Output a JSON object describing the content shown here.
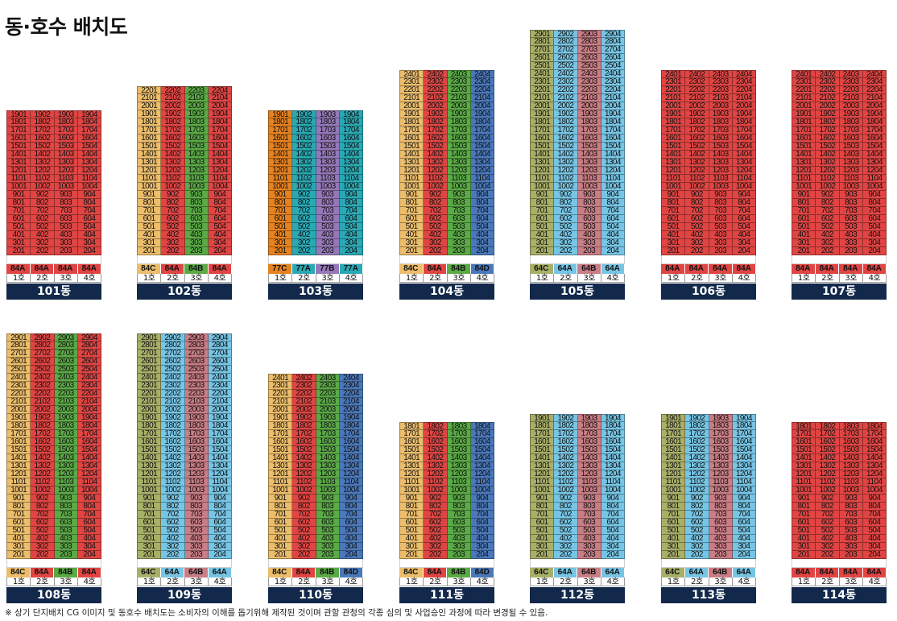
{
  "title": "동·호수 배치도",
  "footnote": "※ 상기 단지배치 CG 이미지 및 동호수 배치도는 소비자의 이해를 돕기위해 제작된 것이며 관할 관청의 각종 심의 및 사업승인 과정에 따라 변경될 수 있음.",
  "unit_labels": [
    "1호",
    "2호",
    "3호",
    "4호"
  ],
  "colors": {
    "84A": "#e04543",
    "84B": "#5aaa45",
    "84C": "#ecbd6a",
    "84D": "#4a78bb",
    "77A": "#29a9b5",
    "77B": "#9678b9",
    "77C": "#e6821f",
    "64A": "#76c5e5",
    "64B": "#c97d85",
    "64C": "#a8b068",
    "name_bg": "#13294b"
  },
  "buildings": [
    {
      "name": "101동",
      "floors": 19,
      "types": [
        "84A",
        "84A",
        "84A",
        "84A"
      ]
    },
    {
      "name": "102동",
      "floors": 22,
      "types": [
        "84C",
        "84A",
        "84B",
        "84A"
      ]
    },
    {
      "name": "103동",
      "floors": 19,
      "types": [
        "77C",
        "77A",
        "77B",
        "77A"
      ]
    },
    {
      "name": "104동",
      "floors": 24,
      "types": [
        "84C",
        "84A",
        "84B",
        "84D"
      ]
    },
    {
      "name": "105동",
      "floors": 29,
      "types": [
        "64C",
        "64A",
        "64B",
        "64A"
      ]
    },
    {
      "name": "106동",
      "floors": 24,
      "types": [
        "84A",
        "84A",
        "84A",
        "84A"
      ]
    },
    {
      "name": "107동",
      "floors": 24,
      "types": [
        "84A",
        "84A",
        "84A",
        "84A"
      ]
    },
    {
      "name": "108동",
      "floors": 29,
      "types": [
        "84C",
        "84A",
        "84B",
        "84A"
      ]
    },
    {
      "name": "109동",
      "floors": 29,
      "types": [
        "64C",
        "64A",
        "64B",
        "64A"
      ]
    },
    {
      "name": "110동",
      "floors": 24,
      "types": [
        "84C",
        "84A",
        "84B",
        "84D"
      ]
    },
    {
      "name": "111동",
      "floors": 18,
      "types": [
        "84C",
        "84A",
        "84B",
        "84D"
      ]
    },
    {
      "name": "112동",
      "floors": 19,
      "types": [
        "64C",
        "64A",
        "64B",
        "64A"
      ]
    },
    {
      "name": "113동",
      "floors": 19,
      "types": [
        "64C",
        "64A",
        "64B",
        "64A"
      ]
    },
    {
      "name": "114동",
      "floors": 18,
      "types": [
        "84A",
        "84A",
        "84A",
        "84A"
      ]
    }
  ]
}
